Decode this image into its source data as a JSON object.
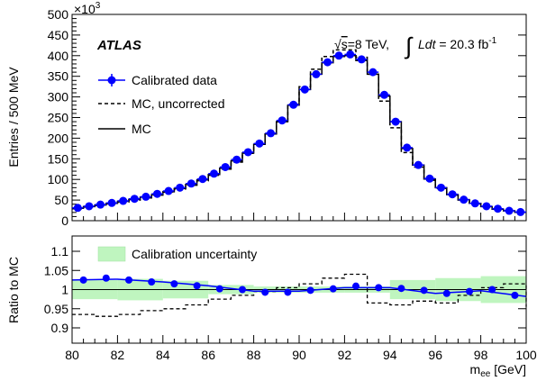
{
  "chart_data": [
    {
      "type": "line",
      "title": "",
      "xlabel": "",
      "ylabel": "Entries / 500 MeV",
      "y_multiplier": "×10",
      "y_multiplier_exp": "3",
      "xlim": [
        80,
        100
      ],
      "ylim": [
        0,
        500
      ],
      "x_ticks": [
        80,
        82,
        84,
        86,
        88,
        90,
        92,
        94,
        96,
        98,
        100
      ],
      "y_ticks": [
        0,
        50,
        100,
        150,
        200,
        250,
        300,
        350,
        400,
        450,
        500
      ],
      "annotations": {
        "atlas": "ATLAS",
        "energy_sqrt": "√",
        "energy_s": "s",
        "energy_rest": "=8 TeV,",
        "lumi_int": "∫",
        "lumi_L": "Ldt",
        "lumi_rest": " = 20.3 fb",
        "lumi_exp": "-1"
      },
      "legend_position": "top-left",
      "x_centers": [
        80.25,
        80.75,
        81.25,
        81.75,
        82.25,
        82.75,
        83.25,
        83.75,
        84.25,
        84.75,
        85.25,
        85.75,
        86.25,
        86.75,
        87.25,
        87.75,
        88.25,
        88.75,
        89.25,
        89.75,
        90.25,
        90.75,
        91.25,
        91.75,
        92.25,
        92.75,
        93.25,
        93.75,
        94.25,
        94.75,
        95.25,
        95.75,
        96.25,
        96.75,
        97.25,
        97.75,
        98.25,
        98.75,
        99.25,
        99.75
      ],
      "series": [
        {
          "name": "Calibrated data",
          "color": "#0000ff",
          "style": "markers",
          "values": [
            31,
            35,
            39,
            43,
            48,
            53,
            58,
            65,
            72,
            80,
            90,
            101,
            114,
            130,
            148,
            166,
            187,
            212,
            243,
            281,
            318,
            355,
            384,
            400,
            403,
            391,
            360,
            305,
            240,
            177,
            135,
            102,
            80,
            64,
            51,
            42,
            35,
            29,
            24,
            21
          ]
        },
        {
          "name": "MC, uncorrected",
          "color": "#000000",
          "style": "dashed-step",
          "values": [
            29,
            33,
            37,
            41,
            45,
            50,
            55,
            62,
            69,
            77,
            86,
            97,
            110,
            125,
            142,
            163,
            185,
            210,
            240,
            282,
            325,
            367,
            398,
            414,
            414,
            396,
            355,
            290,
            225,
            165,
            130,
            98,
            78,
            62,
            50,
            41,
            34,
            28,
            24,
            20
          ]
        },
        {
          "name": "MC",
          "color": "#000000",
          "style": "solid-step",
          "values": [
            30,
            34,
            38,
            42,
            47,
            52,
            57,
            63,
            70,
            78,
            88,
            99,
            112,
            127,
            145,
            164,
            185,
            210,
            240,
            280,
            318,
            355,
            383,
            398,
            400,
            388,
            355,
            302,
            240,
            175,
            135,
            101,
            80,
            63,
            51,
            42,
            34,
            28,
            24,
            20
          ]
        }
      ]
    },
    {
      "type": "line",
      "title": "",
      "xlabel": "m",
      "xlabel_sub": "ee",
      "xlabel_unit": " [GeV]",
      "ylabel": "Ratio to MC",
      "xlim": [
        80,
        100
      ],
      "ylim": [
        0.86,
        1.14
      ],
      "x_ticks": [
        80,
        82,
        84,
        86,
        88,
        90,
        92,
        94,
        96,
        98,
        100
      ],
      "y_ticks": [
        0.9,
        0.95,
        1,
        1.05,
        1.1
      ],
      "y_tick_labels": [
        "0.9",
        "0.95",
        "1",
        "1.05",
        "1.1"
      ],
      "legend_position": "top-left",
      "uncertainty_band": {
        "name": "Calibration uncertainty",
        "color": "#bff5bf",
        "edges": [
          80,
          82,
          84,
          86,
          88,
          90,
          92,
          94,
          96,
          98,
          100
        ],
        "half_width": [
          0.025,
          0.028,
          0.023,
          0.012,
          0.008,
          0.008,
          0.008,
          0.025,
          0.03,
          0.035,
          0.03
        ]
      },
      "ratio_points": {
        "name": "Calibrated data",
        "x": [
          80.5,
          81.5,
          82.5,
          83.5,
          84.5,
          85.5,
          86.5,
          87.5,
          88.5,
          89.5,
          90.5,
          91.5,
          92.5,
          93.5,
          94.5,
          95.5,
          96.5,
          97.5,
          98.5,
          99.5
        ],
        "values": [
          1.025,
          1.03,
          1.025,
          1.02,
          1.015,
          1.01,
          1.002,
          1.0,
          0.993,
          0.993,
          0.998,
          1.002,
          1.009,
          1.005,
          1.003,
          0.998,
          0.99,
          0.995,
          1.0,
          0.985
        ]
      },
      "fit_line": {
        "x": [
          80,
          82,
          84,
          86,
          88,
          90,
          92,
          94,
          96,
          98,
          100
        ],
        "values": [
          1.025,
          1.027,
          1.02,
          1.01,
          0.996,
          0.996,
          1.005,
          1.005,
          0.99,
          0.997,
          0.982
        ]
      },
      "uncorrected_ratio": {
        "name": "MC, uncorrected",
        "edges": [
          80,
          81,
          82,
          83,
          84,
          85,
          86,
          87,
          88,
          89,
          90,
          91,
          92,
          93,
          94,
          95,
          96,
          97,
          98,
          99,
          100
        ],
        "values": [
          0.935,
          0.93,
          0.935,
          0.945,
          0.95,
          0.96,
          0.975,
          0.985,
          0.995,
          1.005,
          1.015,
          1.03,
          1.04,
          0.965,
          0.96,
          0.97,
          0.965,
          0.985,
          1.005,
          1.015,
          0.955
        ]
      }
    }
  ]
}
